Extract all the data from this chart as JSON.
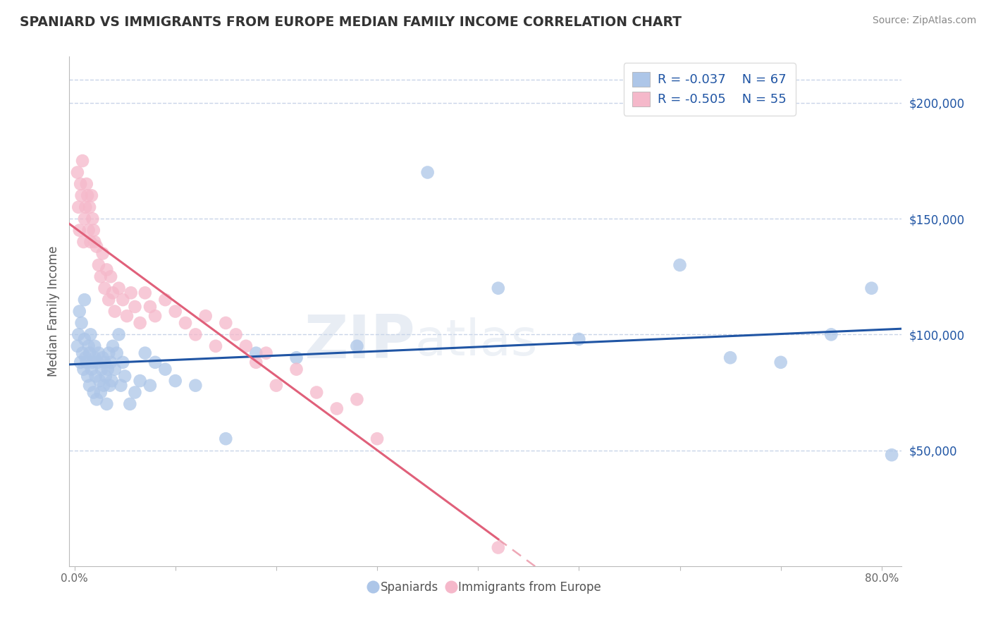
{
  "title": "SPANIARD VS IMMIGRANTS FROM EUROPE MEDIAN FAMILY INCOME CORRELATION CHART",
  "source": "Source: ZipAtlas.com",
  "ylabel": "Median Family Income",
  "xlim": [
    -0.005,
    0.82
  ],
  "ylim": [
    0,
    220000
  ],
  "xticks": [
    0.0,
    0.1,
    0.2,
    0.3,
    0.4,
    0.5,
    0.6,
    0.7,
    0.8
  ],
  "xticklabels": [
    "0.0%",
    "",
    "",
    "",
    "",
    "",
    "",
    "",
    "80.0%"
  ],
  "yticks": [
    50000,
    100000,
    150000,
    200000
  ],
  "yticklabels": [
    "$50,000",
    "$100,000",
    "$150,000",
    "$200,000"
  ],
  "R_blue": -0.037,
  "N_blue": 67,
  "R_pink": -0.505,
  "N_pink": 55,
  "blue_color": "#adc6e8",
  "blue_line_color": "#2055a4",
  "pink_color": "#f5b8ca",
  "pink_line_color": "#e0607a",
  "background_color": "#ffffff",
  "grid_color": "#c8d4e8",
  "watermark_zip": "ZIP",
  "watermark_atlas": "atlas",
  "legend_label_blue": "Spaniards",
  "legend_label_pink": "Immigrants from Europe",
  "blue_scatter_x": [
    0.003,
    0.004,
    0.005,
    0.006,
    0.007,
    0.008,
    0.009,
    0.01,
    0.01,
    0.011,
    0.012,
    0.013,
    0.014,
    0.015,
    0.015,
    0.016,
    0.017,
    0.018,
    0.019,
    0.02,
    0.02,
    0.021,
    0.022,
    0.023,
    0.024,
    0.025,
    0.026,
    0.027,
    0.028,
    0.029,
    0.03,
    0.031,
    0.032,
    0.033,
    0.034,
    0.035,
    0.036,
    0.037,
    0.038,
    0.04,
    0.042,
    0.044,
    0.046,
    0.048,
    0.05,
    0.055,
    0.06,
    0.065,
    0.07,
    0.075,
    0.08,
    0.09,
    0.1,
    0.12,
    0.15,
    0.18,
    0.22,
    0.28,
    0.35,
    0.42,
    0.5,
    0.6,
    0.65,
    0.7,
    0.75,
    0.79,
    0.81
  ],
  "blue_scatter_y": [
    95000,
    100000,
    110000,
    88000,
    105000,
    92000,
    85000,
    98000,
    115000,
    90000,
    88000,
    82000,
    95000,
    92000,
    78000,
    100000,
    85000,
    88000,
    75000,
    90000,
    95000,
    82000,
    72000,
    88000,
    92000,
    80000,
    75000,
    85000,
    90000,
    78000,
    88000,
    82000,
    70000,
    85000,
    92000,
    78000,
    88000,
    80000,
    95000,
    85000,
    92000,
    100000,
    78000,
    88000,
    82000,
    70000,
    75000,
    80000,
    92000,
    78000,
    88000,
    85000,
    80000,
    78000,
    55000,
    92000,
    90000,
    95000,
    170000,
    120000,
    98000,
    130000,
    90000,
    88000,
    100000,
    120000,
    48000
  ],
  "pink_scatter_x": [
    0.003,
    0.004,
    0.005,
    0.006,
    0.007,
    0.008,
    0.009,
    0.01,
    0.011,
    0.012,
    0.013,
    0.014,
    0.015,
    0.016,
    0.017,
    0.018,
    0.019,
    0.02,
    0.022,
    0.024,
    0.026,
    0.028,
    0.03,
    0.032,
    0.034,
    0.036,
    0.038,
    0.04,
    0.044,
    0.048,
    0.052,
    0.056,
    0.06,
    0.065,
    0.07,
    0.075,
    0.08,
    0.09,
    0.1,
    0.11,
    0.12,
    0.13,
    0.14,
    0.15,
    0.16,
    0.17,
    0.18,
    0.19,
    0.2,
    0.22,
    0.24,
    0.26,
    0.28,
    0.3,
    0.42
  ],
  "pink_scatter_y": [
    170000,
    155000,
    145000,
    165000,
    160000,
    175000,
    140000,
    150000,
    155000,
    165000,
    160000,
    145000,
    155000,
    140000,
    160000,
    150000,
    145000,
    140000,
    138000,
    130000,
    125000,
    135000,
    120000,
    128000,
    115000,
    125000,
    118000,
    110000,
    120000,
    115000,
    108000,
    118000,
    112000,
    105000,
    118000,
    112000,
    108000,
    115000,
    110000,
    105000,
    100000,
    108000,
    95000,
    105000,
    100000,
    95000,
    88000,
    92000,
    78000,
    85000,
    75000,
    68000,
    72000,
    55000,
    8000
  ]
}
